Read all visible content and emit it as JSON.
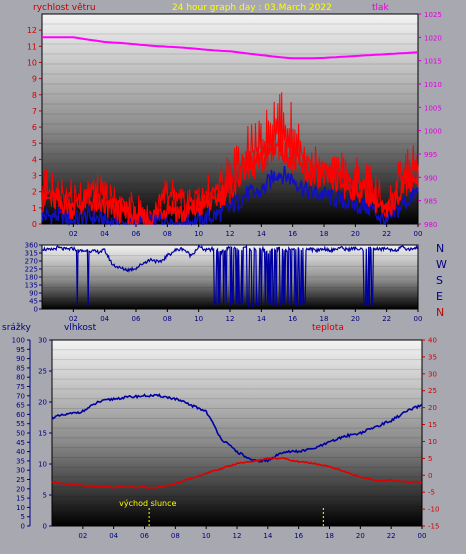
{
  "colors": {
    "frame": "#a8a8b0",
    "wind": "#ff0000",
    "gust_base": "#1010c0",
    "pressure": "#ff00ff",
    "direction": "#0000a0",
    "humidity": "#0000a0",
    "temperature": "#e00000",
    "title": "#ffff00",
    "sunrise": "#ffff00"
  },
  "chart_data": [
    {
      "type": "line",
      "title": "24 hour graph day : 03.March 2022",
      "left_axis_label": "rychlost větru",
      "right_axis_label": "tlak",
      "x_ticks": [
        "02",
        "04",
        "06",
        "08",
        "10",
        "12",
        "14",
        "16",
        "18",
        "20",
        "22",
        "00"
      ],
      "x_range": [
        0,
        24
      ],
      "ylim_left": [
        0,
        13
      ],
      "ylim_right": [
        980,
        1025
      ],
      "y_ticks_left": [
        0,
        1,
        2,
        3,
        4,
        5,
        6,
        7,
        8,
        9,
        10,
        11,
        12
      ],
      "y_ticks_right": [
        980,
        985,
        990,
        995,
        1000,
        1005,
        1010,
        1015,
        1020,
        1025
      ],
      "series": [
        {
          "axis": "right",
          "x": [
            0,
            1,
            2,
            3,
            4,
            5,
            6,
            7,
            8,
            9,
            10,
            11,
            12,
            13,
            14,
            15,
            16,
            17,
            18,
            19,
            20,
            21,
            22,
            23,
            24
          ],
          "values": [
            1020,
            1020,
            1020,
            1019.5,
            1019,
            1018.8,
            1018.5,
            1018.2,
            1018,
            1017.8,
            1017.5,
            1017.2,
            1017,
            1016.6,
            1016.2,
            1015.8,
            1015.5,
            1015.5,
            1015.6,
            1015.8,
            1016,
            1016.2,
            1016.4,
            1016.6,
            1016.8
          ]
        },
        {
          "axis": "left",
          "x": [
            0,
            1,
            2,
            3,
            4,
            5,
            6,
            7,
            8,
            9,
            10,
            11,
            12,
            13,
            14,
            15,
            16,
            17,
            18,
            19,
            20,
            21,
            22,
            23,
            24
          ],
          "values": [
            1.5,
            1.5,
            1.0,
            1.5,
            1.0,
            0.8,
            0.3,
            0.3,
            1.2,
            0.6,
            1.0,
            1.5,
            2.2,
            3.5,
            3.8,
            5.0,
            4.0,
            3.0,
            3.0,
            2.5,
            2.2,
            1.8,
            0.5,
            2.5,
            3.0
          ]
        },
        {
          "axis": "left",
          "x": [
            0,
            1,
            2,
            3,
            4,
            5,
            6,
            7,
            8,
            9,
            10,
            11,
            12,
            13,
            14,
            15,
            16,
            17,
            18,
            19,
            20,
            21,
            22,
            23,
            24
          ],
          "values": [
            0.5,
            0.5,
            0.2,
            0.5,
            0.2,
            0,
            0,
            0,
            0.3,
            0,
            0.2,
            0.5,
            1.0,
            1.8,
            2.0,
            3.2,
            2.8,
            2.0,
            1.8,
            1.5,
            1.2,
            1.0,
            0,
            1.2,
            2.0
          ]
        },
        {
          "axis": "left",
          "x": [
            0,
            1,
            2,
            3,
            4,
            5,
            6,
            7,
            8,
            9,
            10,
            11,
            12,
            13,
            14,
            15,
            16,
            17,
            18,
            19,
            20,
            21,
            22,
            23,
            24
          ],
          "values": [
            2.5,
            2.8,
            2.0,
            2.5,
            2.0,
            1.5,
            1.0,
            0.8,
            2.0,
            1.5,
            2.0,
            2.5,
            3.5,
            5.0,
            5.5,
            7.5,
            6.5,
            4.5,
            4.0,
            3.5,
            3.2,
            2.8,
            1.2,
            3.5,
            4.2
          ]
        }
      ]
    },
    {
      "type": "line",
      "x_ticks": [
        "02",
        "04",
        "06",
        "08",
        "10",
        "12",
        "14",
        "16",
        "18",
        "20",
        "22",
        "00"
      ],
      "x_range": [
        0,
        24
      ],
      "ylim": [
        0,
        360
      ],
      "y_ticks": [
        0,
        45,
        90,
        135,
        180,
        225,
        270,
        315,
        360
      ],
      "compass": [
        "N",
        "W",
        "S",
        "E",
        "N"
      ],
      "series": [
        {
          "x": [
            0,
            0.5,
            1,
            1.5,
            2,
            2.5,
            3,
            3.5,
            4,
            4.5,
            5,
            5.5,
            6,
            6.5,
            7,
            7.5,
            8,
            8.5,
            9,
            9.5,
            10,
            10.5,
            11,
            11.5,
            12,
            12.5,
            13,
            13.5,
            14,
            14.5,
            15,
            15.5,
            16,
            16.5,
            17,
            17.5,
            18,
            18.5,
            19,
            19.5,
            20,
            20.5,
            21,
            21.5,
            22,
            22.5,
            23,
            23.5,
            24
          ],
          "values": [
            340,
            330,
            345,
            335,
            340,
            325,
            330,
            320,
            330,
            250,
            230,
            220,
            230,
            260,
            280,
            260,
            300,
            330,
            340,
            300,
            350,
            330,
            340,
            320,
            350,
            330,
            345,
            335,
            340,
            320,
            340,
            330,
            345,
            335,
            340,
            330,
            340,
            330,
            345,
            335,
            340,
            330,
            345,
            335,
            340,
            330,
            345,
            335,
            350
          ]
        }
      ]
    },
    {
      "type": "line",
      "left_axis_label": "srážky",
      "left_axis_label_2": "vlhkost",
      "right_axis_label": "teplota",
      "x_ticks": [
        "02",
        "04",
        "06",
        "08",
        "10",
        "12",
        "14",
        "16",
        "18",
        "20",
        "22",
        "00"
      ],
      "x_range": [
        0,
        24
      ],
      "ylim_rain": [
        0,
        100
      ],
      "y_ticks_rain": [
        0,
        5,
        10,
        15,
        20,
        25,
        30,
        35,
        40,
        45,
        50,
        55,
        60,
        65,
        70,
        75,
        80,
        85,
        90,
        95,
        100
      ],
      "ylim_humidity": [
        0,
        30
      ],
      "y_ticks_humidity": [
        0,
        5,
        10,
        15,
        20,
        25,
        30
      ],
      "ylim_temperature": [
        -15,
        40
      ],
      "y_ticks_temperature": [
        -15,
        -10,
        -5,
        0,
        5,
        10,
        15,
        20,
        25,
        30,
        35,
        40
      ],
      "annotation": "východ slunce",
      "sunrise_hour": 6.3,
      "sunset_hour": 17.6,
      "series": [
        {
          "axis": "humidity",
          "x": [
            0,
            1,
            2,
            3,
            4,
            5,
            6,
            7,
            8,
            9,
            10,
            11,
            12,
            13,
            14,
            15,
            16,
            17,
            18,
            19,
            20,
            21,
            22,
            23,
            24
          ],
          "values": [
            17.5,
            18,
            18.5,
            20,
            20.5,
            20.8,
            21,
            21,
            20.5,
            19.5,
            18.5,
            14,
            12,
            10.5,
            10.5,
            12,
            12,
            12.5,
            13.5,
            14.5,
            15,
            16,
            17,
            18.5,
            19.5
          ]
        },
        {
          "axis": "temperature",
          "x": [
            0,
            1,
            2,
            3,
            4,
            5,
            6,
            7,
            8,
            9,
            10,
            11,
            12,
            13,
            14,
            15,
            16,
            17,
            18,
            19,
            20,
            21,
            22,
            23,
            24
          ],
          "values": [
            -2,
            -2.5,
            -3,
            -3.3,
            -3.5,
            -3.5,
            -3.6,
            -3.5,
            -2.5,
            -1,
            0.5,
            2,
            3.5,
            4,
            5,
            5,
            4,
            3.5,
            2.5,
            1,
            -0.5,
            -1.5,
            -1.5,
            -2,
            -2
          ]
        }
      ]
    }
  ]
}
